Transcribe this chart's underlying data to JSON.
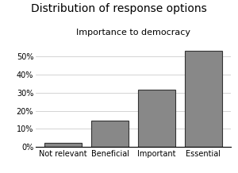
{
  "title": "Distribution of response options",
  "subtitle": "Importance to democracy",
  "categories": [
    "Not relevant",
    "Beneficial",
    "Important",
    "Essential"
  ],
  "values": [
    2.5,
    14.5,
    31.5,
    53.0
  ],
  "bar_color": "#888888",
  "bar_edge_color": "#333333",
  "ylim": [
    0,
    60
  ],
  "yticks": [
    0,
    10,
    20,
    30,
    40,
    50
  ],
  "ytick_labels": [
    "0%",
    "10%",
    "20%",
    "30%",
    "40%",
    "50%"
  ],
  "background_color": "#ffffff",
  "grid_color": "#cccccc",
  "title_fontsize": 10,
  "subtitle_fontsize": 8,
  "tick_fontsize": 7
}
